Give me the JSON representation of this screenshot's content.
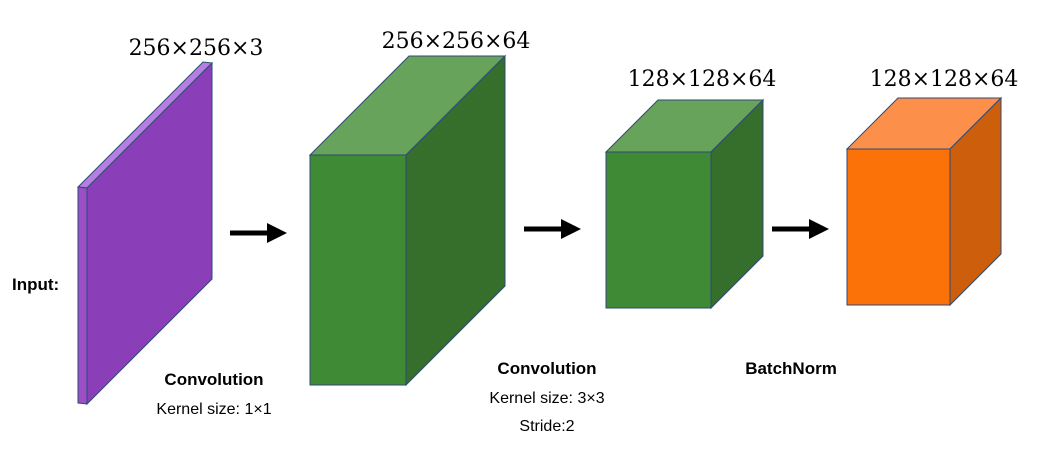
{
  "input_label": "Input:",
  "colors": {
    "purple_front": "#9a4fc6",
    "purple_side": "#8a3fb8",
    "purple_top": "#b57ee0",
    "green_front": "#3f8a34",
    "green_side": "#356f2b",
    "green_top": "#67a35b",
    "orange_front": "#fb7208",
    "orange_side": "#cd5f0c",
    "orange_top": "#fc8f4a"
  },
  "blocks": [
    {
      "dims": "256×256×3"
    },
    {
      "dims": "256×256×64"
    },
    {
      "dims": "128×128×64"
    },
    {
      "dims": "128×128×64"
    }
  ],
  "operations": [
    {
      "title": "Convolution",
      "lines": [
        "Kernel size: 1×1"
      ]
    },
    {
      "title": "Convolution",
      "lines": [
        "Kernel size: 3×3",
        "Stride:2"
      ]
    },
    {
      "title": "BatchNorm",
      "lines": []
    }
  ],
  "arrow_icon": "right-arrow-icon"
}
